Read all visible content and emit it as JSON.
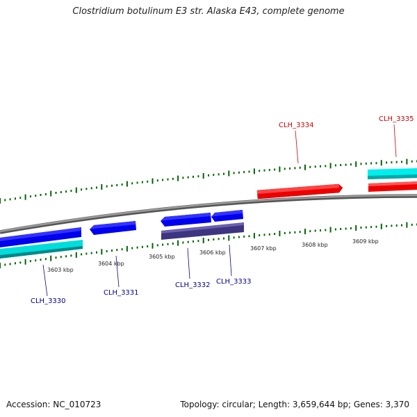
{
  "title": "Clostridium botulinum E3 str. Alaska E43, complete genome",
  "footer": {
    "accession": "Accession: NC_010723",
    "summary": "Topology: circular; Length: 3,659,644 bp; Genes: 3,370"
  },
  "colors": {
    "backbone": "#7f7f7f",
    "forward_cds": "#ff0000",
    "forward_gene": "#00ffff",
    "reverse_cds": "#0000ff",
    "reverse_gene": "#00cccc",
    "reverse_other": "#4a3f8f",
    "ticks": "#006400",
    "label_forward": "#cc0000",
    "label_reverse": "#00008b"
  },
  "scale": {
    "unit": "kbp",
    "labels": [
      {
        "text": "3603 kbp",
        "kbp": 3603
      },
      {
        "text": "3604 kbp",
        "kbp": 3604
      },
      {
        "text": "3605 kbp",
        "kbp": 3605
      },
      {
        "text": "3606 kbp",
        "kbp": 3606
      },
      {
        "text": "3607 kbp",
        "kbp": 3607
      },
      {
        "text": "3608 kbp",
        "kbp": 3608
      },
      {
        "text": "3609 kbp",
        "kbp": 3609
      }
    ]
  },
  "genes": [
    {
      "label": "CLH_3330",
      "strand": "reverse"
    },
    {
      "label": "CLH_3331",
      "strand": "reverse"
    },
    {
      "label": "CLH_3332",
      "strand": "reverse"
    },
    {
      "label": "CLH_3333",
      "strand": "reverse"
    },
    {
      "label": "CLH_3334",
      "strand": "forward"
    },
    {
      "label": "CLH_3335",
      "strand": "forward"
    }
  ]
}
